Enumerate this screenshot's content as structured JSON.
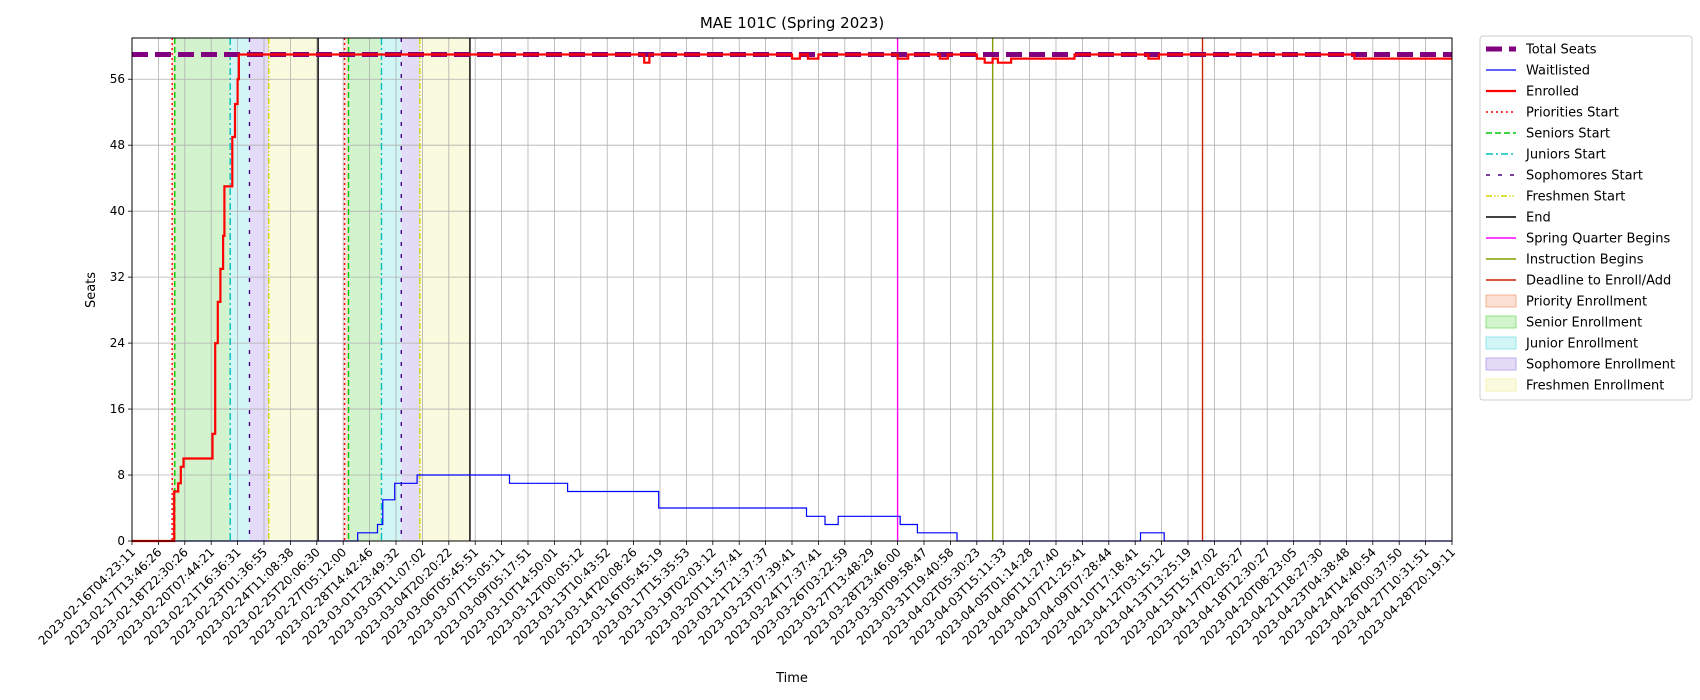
{
  "chart_data": {
    "type": "line",
    "title": "MAE 101C (Spring 2023)",
    "xlabel": "Time",
    "ylabel": "Seats",
    "ylim": [
      0,
      61
    ],
    "grid": true,
    "legend_position": "outside-right",
    "x_tick_labels": [
      "2023-02-16T04:23:11",
      "2023-02-17T13:46:26",
      "2023-02-18T22:30:26",
      "2023-02-20T07:44:21",
      "2023-02-21T16:36:31",
      "2023-02-23T01:36:55",
      "2023-02-24T11:08:38",
      "2023-02-25T20:06:30",
      "2023-02-27T05:12:00",
      "2023-02-28T14:42:46",
      "2023-03-01T23:49:32",
      "2023-03-03T11:07:02",
      "2023-03-04T20:20:22",
      "2023-03-06T05:45:51",
      "2023-03-07T15:05:11",
      "2023-03-09T05:17:51",
      "2023-03-10T14:50:01",
      "2023-03-12T00:05:12",
      "2023-03-13T10:43:52",
      "2023-03-14T20:08:26",
      "2023-03-16T05:45:19",
      "2023-03-17T15:35:53",
      "2023-03-19T02:03:12",
      "2023-03-20T11:57:41",
      "2023-03-21T21:37:37",
      "2023-03-23T07:39:41",
      "2023-03-24T17:37:41",
      "2023-03-26T03:22:59",
      "2023-03-27T13:48:29",
      "2023-03-28T23:46:00",
      "2023-03-30T09:58:47",
      "2023-03-31T19:40:58",
      "2023-04-02T05:30:23",
      "2023-04-03T15:11:33",
      "2023-04-05T01:14:28",
      "2023-04-06T11:27:40",
      "2023-04-07T21:25:41",
      "2023-04-09T07:28:44",
      "2023-04-10T17:18:41",
      "2023-04-12T03:15:12",
      "2023-04-13T13:25:19",
      "2023-04-15T15:47:02",
      "2023-04-17T02:05:27",
      "2023-04-18T12:30:27",
      "2023-04-20T08:23:05",
      "2023-04-21T18:27:30",
      "2023-04-23T04:38:48",
      "2023-04-24T14:40:54",
      "2023-04-26T00:37:50",
      "2023-04-27T10:31:51",
      "2023-04-28T20:19:11"
    ],
    "y_ticks": [
      0,
      8,
      16,
      24,
      32,
      40,
      48,
      56
    ],
    "series": [
      {
        "name": "Total Seats",
        "color": "#800080",
        "style": "dashed-thick",
        "points": [
          [
            0,
            59
          ],
          [
            50,
            59
          ]
        ]
      },
      {
        "name": "Waitlisted",
        "color": "#0000ff",
        "style": "solid-thin",
        "step": true,
        "points": [
          [
            0,
            0
          ],
          [
            8.55,
            0
          ],
          [
            8.55,
            1
          ],
          [
            9.3,
            1
          ],
          [
            9.3,
            2
          ],
          [
            9.5,
            2
          ],
          [
            9.5,
            5
          ],
          [
            9.95,
            5
          ],
          [
            9.95,
            7
          ],
          [
            10.8,
            7
          ],
          [
            10.8,
            8
          ],
          [
            14.3,
            8
          ],
          [
            14.3,
            7
          ],
          [
            16.5,
            7
          ],
          [
            16.5,
            6
          ],
          [
            19.95,
            6
          ],
          [
            19.95,
            4
          ],
          [
            25.55,
            4
          ],
          [
            25.55,
            3
          ],
          [
            26.25,
            3
          ],
          [
            26.25,
            2
          ],
          [
            26.75,
            2
          ],
          [
            26.75,
            3
          ],
          [
            29.1,
            3
          ],
          [
            29.1,
            2
          ],
          [
            29.75,
            2
          ],
          [
            29.75,
            1
          ],
          [
            31.25,
            1
          ],
          [
            31.25,
            0
          ],
          [
            38.2,
            0
          ],
          [
            38.2,
            1
          ],
          [
            39.1,
            1
          ],
          [
            39.1,
            0
          ],
          [
            50,
            0
          ]
        ]
      },
      {
        "name": "Enrolled",
        "color": "#ff0000",
        "style": "solid-thick",
        "step": true,
        "points": [
          [
            0,
            0
          ],
          [
            1.6,
            0
          ],
          [
            1.6,
            6
          ],
          [
            1.75,
            6
          ],
          [
            1.75,
            7
          ],
          [
            1.85,
            7
          ],
          [
            1.85,
            9
          ],
          [
            1.95,
            9
          ],
          [
            1.95,
            10
          ],
          [
            3.05,
            10
          ],
          [
            3.05,
            13
          ],
          [
            3.15,
            13
          ],
          [
            3.15,
            24
          ],
          [
            3.25,
            24
          ],
          [
            3.25,
            29
          ],
          [
            3.35,
            29
          ],
          [
            3.35,
            33
          ],
          [
            3.45,
            33
          ],
          [
            3.45,
            37
          ],
          [
            3.5,
            37
          ],
          [
            3.5,
            43
          ],
          [
            3.8,
            43
          ],
          [
            3.8,
            49
          ],
          [
            3.9,
            49
          ],
          [
            3.9,
            53
          ],
          [
            4.0,
            53
          ],
          [
            4.0,
            56
          ],
          [
            4.05,
            56
          ],
          [
            4.05,
            59
          ],
          [
            19.4,
            59
          ],
          [
            19.4,
            58
          ],
          [
            19.6,
            58
          ],
          [
            19.6,
            59
          ],
          [
            25.0,
            59
          ],
          [
            25.0,
            58.5
          ],
          [
            25.3,
            58.5
          ],
          [
            25.3,
            59
          ],
          [
            25.6,
            59
          ],
          [
            25.6,
            58.5
          ],
          [
            26.0,
            58.5
          ],
          [
            26.0,
            59
          ],
          [
            29.0,
            59
          ],
          [
            29.0,
            58.5
          ],
          [
            29.4,
            58.5
          ],
          [
            29.4,
            59
          ],
          [
            30.6,
            59
          ],
          [
            30.6,
            58.5
          ],
          [
            30.9,
            58.5
          ],
          [
            30.9,
            59
          ],
          [
            32.0,
            59
          ],
          [
            32.0,
            58.5
          ],
          [
            32.3,
            58.5
          ],
          [
            32.3,
            58
          ],
          [
            32.6,
            58
          ],
          [
            32.6,
            58.5
          ],
          [
            32.8,
            58.5
          ],
          [
            32.8,
            58
          ],
          [
            33.3,
            58
          ],
          [
            33.3,
            58.5
          ],
          [
            35.7,
            58.5
          ],
          [
            35.7,
            59
          ],
          [
            38.5,
            59
          ],
          [
            38.5,
            58.5
          ],
          [
            38.9,
            58.5
          ],
          [
            38.9,
            59
          ],
          [
            46.3,
            59
          ],
          [
            46.3,
            58.5
          ],
          [
            50,
            58.5
          ]
        ]
      }
    ],
    "vertical_lines": [
      {
        "name": "Priorities Start",
        "color": "#ff0000",
        "style": "dotted",
        "x": [
          1.52,
          8.05
        ]
      },
      {
        "name": "Seniors Start",
        "color": "#00cc00",
        "style": "dashed",
        "x": [
          1.62,
          8.2
        ]
      },
      {
        "name": "Juniors Start",
        "color": "#00bfbf",
        "style": "dashdot",
        "x": [
          3.72,
          9.45
        ]
      },
      {
        "name": "Sophomores Start",
        "color": "#4b0082",
        "style": "loosedash",
        "x": [
          4.45,
          10.2
        ]
      },
      {
        "name": "Freshmen Start",
        "color": "#d4d400",
        "style": "dashdotdot",
        "x": [
          5.18,
          10.9
        ]
      },
      {
        "name": "End",
        "color": "#000000",
        "style": "solid",
        "x": [
          7.05,
          12.8
        ]
      },
      {
        "name": "Spring Quarter Begins",
        "color": "#ff00ff",
        "style": "solid",
        "x": [
          29.0
        ]
      },
      {
        "name": "Instruction Begins",
        "color": "#7fa000",
        "style": "solid",
        "x": [
          32.6
        ]
      },
      {
        "name": "Deadline to Enroll/Add",
        "color": "#cc2200",
        "style": "solid",
        "x": [
          40.55
        ]
      }
    ],
    "shaded_regions": [
      {
        "name": "Priority Enrollment",
        "color": "#f4a582",
        "spans": [
          [
            1.52,
            1.62
          ],
          [
            8.05,
            8.2
          ]
        ]
      },
      {
        "name": "Senior Enrollment",
        "color": "#7fdc6f",
        "spans": [
          [
            1.62,
            3.72
          ],
          [
            8.2,
            9.45
          ]
        ]
      },
      {
        "name": "Junior Enrollment",
        "color": "#7fe5e5",
        "spans": [
          [
            3.72,
            4.45
          ],
          [
            9.45,
            10.2
          ]
        ]
      },
      {
        "name": "Sophomore Enrollment",
        "color": "#b399e6",
        "spans": [
          [
            4.45,
            5.18
          ],
          [
            10.2,
            10.9
          ]
        ]
      },
      {
        "name": "Freshmen Enrollment",
        "color": "#f0f0a0",
        "spans": [
          [
            5.18,
            7.05
          ],
          [
            10.9,
            12.8
          ]
        ]
      }
    ]
  },
  "legend": {
    "items": [
      {
        "label": "Total Seats",
        "kind": "line",
        "color": "#800080",
        "style": "dashed-thick"
      },
      {
        "label": "Waitlisted",
        "kind": "line",
        "color": "#0000ff",
        "style": "solid-thin"
      },
      {
        "label": "Enrolled",
        "kind": "line",
        "color": "#ff0000",
        "style": "solid-thick"
      },
      {
        "label": "Priorities Start",
        "kind": "line",
        "color": "#ff0000",
        "style": "dotted"
      },
      {
        "label": "Seniors Start",
        "kind": "line",
        "color": "#00cc00",
        "style": "dashed"
      },
      {
        "label": "Juniors Start",
        "kind": "line",
        "color": "#00bfbf",
        "style": "dashdot"
      },
      {
        "label": "Sophomores Start",
        "kind": "line",
        "color": "#4b0082",
        "style": "loosedash"
      },
      {
        "label": "Freshmen Start",
        "kind": "line",
        "color": "#d4d400",
        "style": "dashdotdot"
      },
      {
        "label": "End",
        "kind": "line",
        "color": "#000000",
        "style": "solid"
      },
      {
        "label": "Spring Quarter Begins",
        "kind": "line",
        "color": "#ff00ff",
        "style": "solid"
      },
      {
        "label": "Instruction Begins",
        "kind": "line",
        "color": "#7fa000",
        "style": "solid"
      },
      {
        "label": "Deadline to Enroll/Add",
        "kind": "line",
        "color": "#cc2200",
        "style": "solid"
      },
      {
        "label": "Priority Enrollment",
        "kind": "patch",
        "color": "#f4a582"
      },
      {
        "label": "Senior Enrollment",
        "kind": "patch",
        "color": "#7fdc6f"
      },
      {
        "label": "Junior Enrollment",
        "kind": "patch",
        "color": "#7fe5e5"
      },
      {
        "label": "Sophomore Enrollment",
        "kind": "patch",
        "color": "#b399e6"
      },
      {
        "label": "Freshmen Enrollment",
        "kind": "patch",
        "color": "#f0f0a0"
      }
    ]
  }
}
